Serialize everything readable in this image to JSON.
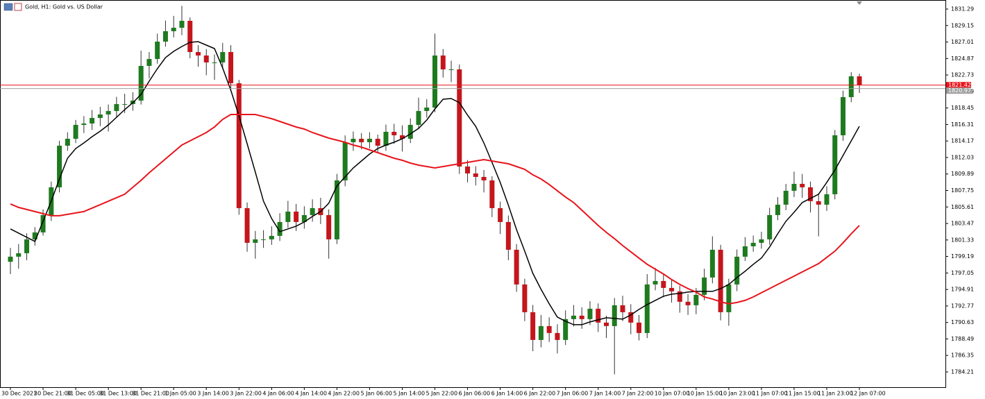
{
  "chart_data": {
    "type": "candlestick",
    "title": "Gold, H1: Gold vs. US Dollar",
    "categories": [
      "30 Dec 2021",
      null,
      null,
      null,
      "30 Dec 21:00",
      null,
      null,
      null,
      "31 Dec 05:00",
      null,
      null,
      null,
      "31 Dec 13:00",
      null,
      null,
      null,
      "31 Dec 21:00",
      null,
      null,
      null,
      "1 Jan 05:00",
      null,
      null,
      null,
      "3 Jan 14:00",
      null,
      null,
      null,
      "3 Jan 22:00",
      null,
      null,
      null,
      "4 Jan 06:00",
      null,
      null,
      null,
      "4 Jan 14:00",
      null,
      null,
      null,
      "4 Jan 22:00",
      null,
      null,
      null,
      "5 Jan 06:00",
      null,
      null,
      null,
      "5 Jan 14:00",
      null,
      null,
      null,
      "5 Jan 22:00",
      null,
      null,
      null,
      "6 Jan 06:00",
      null,
      null,
      null,
      "6 Jan 14:00",
      null,
      null,
      null,
      "6 Jan 22:00",
      null,
      null,
      null,
      "7 Jan 06:00",
      null,
      null,
      null,
      "7 Jan 14:00",
      null,
      null,
      null,
      "7 Jan 22:00",
      null,
      null,
      null,
      "10 Jan 07:00",
      null,
      null,
      null,
      "10 Jan 15:00",
      null,
      null,
      null,
      "10 Jan 23:00",
      null,
      null,
      null,
      "11 Jan 07:00",
      null,
      null,
      null,
      "11 Jan 15:00",
      null,
      null,
      null,
      "11 Jan 23:00",
      null,
      null,
      null,
      "12 Jan 07:00"
    ],
    "open": [
      1798.5,
      1799.16,
      1799.61,
      1801.41,
      1802.31,
      1804.56,
      1808.16,
      1813.56,
      1814.46,
      1816.26,
      1816.44,
      1817.16,
      1817.61,
      1818.06,
      1818.96,
      1818.96,
      1819.41,
      1823.91,
      1824.81,
      1827.06,
      1828.41,
      1828.86,
      1829.76,
      1825.71,
      1825.26,
      1824.36,
      1824.36,
      1825.71,
      1821.66,
      1805.46,
      1800.96,
      1801.41,
      1801.41,
      1801.86,
      1803.66,
      1805.01,
      1803.66,
      1804.56,
      1805.46,
      1804.56,
      1801.41,
      1809.06,
      1814.01,
      1814.46,
      1814.01,
      1814.46,
      1813.56,
      1815.36,
      1814.91,
      1814.46,
      1816.26,
      1818.06,
      1818.51,
      1825.26,
      1823.46,
      1823.46,
      1810.86,
      1809.96,
      1809.51,
      1809.06,
      1805.46,
      1803.66,
      1800.06,
      1795.56,
      1791.96,
      1788.36,
      1790.16,
      1789.26,
      1788.36,
      1791.06,
      1791.51,
      1791.06,
      1792.41,
      1790.61,
      1790.16,
      1792.86,
      1791.96,
      1790.61,
      1789.26,
      1795.56,
      1796.01,
      1795.11,
      1794.66,
      1793.31,
      1792.86,
      1794.21,
      1796.46,
      1800.06,
      1791.96,
      1795.56,
      1799.16,
      1800.51,
      1800.96,
      1801.41,
      1804.56,
      1805.91,
      1807.71,
      1808.61,
      1808.16,
      1806.36,
      1805.91,
      1807.26,
      1814.91,
      1819.86,
      1822.56
    ],
    "high": [
      1800.3,
      1800.8,
      1802.2,
      1803.0,
      1805.3,
      1808.9,
      1814.2,
      1815.3,
      1816.9,
      1817.4,
      1818.2,
      1818.6,
      1818.9,
      1819.9,
      1820.3,
      1820.5,
      1825.9,
      1825.7,
      1828.1,
      1829.8,
      1830.4,
      1831.7,
      1830.2,
      1826.6,
      1826.1,
      1825.4,
      1826.9,
      1826.6,
      1822.1,
      1806.2,
      1802.5,
      1802.6,
      1803.1,
      1804.8,
      1806.4,
      1806.0,
      1805.7,
      1806.6,
      1806.8,
      1805.3,
      1809.9,
      1814.9,
      1815.4,
      1815.2,
      1815.3,
      1815.0,
      1816.3,
      1816.4,
      1816.2,
      1817.1,
      1819.8,
      1819.6,
      1828.1,
      1826.1,
      1824.6,
      1824.1,
      1811.7,
      1810.9,
      1810.4,
      1809.6,
      1806.3,
      1804.5,
      1800.8,
      1796.3,
      1792.9,
      1791.6,
      1791.3,
      1790.4,
      1792.2,
      1792.9,
      1792.6,
      1793.4,
      1793.1,
      1791.5,
      1793.8,
      1794.1,
      1793.0,
      1791.6,
      1796.9,
      1797.7,
      1796.9,
      1796.2,
      1795.4,
      1794.3,
      1795.1,
      1797.6,
      1801.8,
      1800.7,
      1796.3,
      1800.1,
      1801.7,
      1801.9,
      1802.4,
      1805.5,
      1806.9,
      1808.6,
      1810.2,
      1809.9,
      1808.9,
      1807.4,
      1808.3,
      1815.6,
      1820.7,
      1823.1,
      1822.9
    ],
    "low": [
      1796.9,
      1797.6,
      1798.7,
      1800.6,
      1801.9,
      1803.8,
      1807.5,
      1812.9,
      1813.9,
      1815.2,
      1815.6,
      1816.1,
      1815.4,
      1817.2,
      1817.8,
      1818.1,
      1818.9,
      1822.3,
      1824.2,
      1826.4,
      1827.6,
      1827.9,
      1824.9,
      1823.8,
      1822.7,
      1822.1,
      1823.5,
      1820.8,
      1804.6,
      1799.8,
      1798.9,
      1800.3,
      1800.7,
      1801.2,
      1802.9,
      1802.5,
      1802.8,
      1803.7,
      1803.4,
      1798.9,
      1800.8,
      1808.3,
      1812.9,
      1813.1,
      1813.2,
      1812.7,
      1812.9,
      1813.8,
      1812.8,
      1813.9,
      1815.7,
      1817.2,
      1817.9,
      1822.4,
      1821.8,
      1809.9,
      1808.8,
      1808.4,
      1807.5,
      1804.3,
      1802.1,
      1798.7,
      1794.6,
      1790.8,
      1786.9,
      1787.4,
      1788.1,
      1786.6,
      1787.7,
      1790.1,
      1789.8,
      1790.3,
      1789.4,
      1788.6,
      1783.9,
      1790.8,
      1789.1,
      1788.3,
      1788.6,
      1794.8,
      1793.9,
      1793.2,
      1791.9,
      1791.6,
      1791.7,
      1793.5,
      1795.7,
      1790.9,
      1790.2,
      1794.7,
      1798.6,
      1799.8,
      1800.2,
      1800.7,
      1803.9,
      1805.2,
      1806.9,
      1806.8,
      1804.9,
      1801.8,
      1805.1,
      1806.6,
      1814.2,
      1819.2,
      1820.4
    ],
    "close": [
      1799.16,
      1799.61,
      1801.41,
      1802.31,
      1804.56,
      1808.16,
      1813.56,
      1814.46,
      1816.26,
      1816.44,
      1817.16,
      1817.61,
      1818.06,
      1818.96,
      1818.96,
      1819.41,
      1823.91,
      1824.81,
      1827.06,
      1828.41,
      1828.86,
      1829.76,
      1825.71,
      1825.26,
      1824.36,
      1824.36,
      1825.71,
      1821.66,
      1805.46,
      1800.96,
      1801.41,
      1801.41,
      1801.86,
      1803.66,
      1805.01,
      1803.66,
      1804.56,
      1805.46,
      1804.56,
      1801.41,
      1809.06,
      1814.01,
      1814.46,
      1814.01,
      1814.46,
      1813.56,
      1815.36,
      1814.91,
      1814.46,
      1816.26,
      1818.06,
      1818.51,
      1825.26,
      1823.46,
      1823.46,
      1810.86,
      1809.96,
      1809.51,
      1809.06,
      1805.46,
      1803.66,
      1800.06,
      1795.56,
      1791.96,
      1788.36,
      1790.16,
      1789.26,
      1788.36,
      1791.06,
      1791.51,
      1791.06,
      1792.41,
      1790.61,
      1790.16,
      1792.86,
      1791.96,
      1790.61,
      1789.26,
      1795.56,
      1796.01,
      1795.11,
      1794.66,
      1793.31,
      1792.86,
      1794.21,
      1796.46,
      1800.06,
      1791.96,
      1795.56,
      1799.16,
      1800.51,
      1800.96,
      1801.41,
      1804.56,
      1805.91,
      1807.71,
      1808.61,
      1808.16,
      1806.36,
      1805.91,
      1807.26,
      1814.91,
      1819.86,
      1822.56,
      1821.42
    ],
    "up_color": "#1f7a1f",
    "down_color": "#c4161c",
    "wick_color": "#333333",
    "lines": [
      {
        "color": "#000000",
        "values": [
          1802.76,
          1802.22,
          1801.68,
          1801.14,
          1803.75,
          1806.36,
          1809.24,
          1811.94,
          1813.2,
          1813.92,
          1814.73,
          1815.45,
          1816.26,
          1817.25,
          1818.24,
          1819.14,
          1820.22,
          1821.93,
          1823.55,
          1824.99,
          1825.8,
          1826.43,
          1826.97,
          1827.06,
          1826.61,
          1826.16,
          1823.64,
          1820.76,
          1817.43,
          1813.83,
          1810.14,
          1806.36,
          1804.11,
          1802.4,
          1802.76,
          1803.12,
          1803.66,
          1804.38,
          1805.01,
          1806.09,
          1808.34,
          1809.51,
          1810.68,
          1811.58,
          1812.48,
          1813.2,
          1813.65,
          1814.01,
          1814.46,
          1815.09,
          1815.81,
          1816.89,
          1818.33,
          1819.59,
          1819.68,
          1819.14,
          1817.52,
          1816.08,
          1813.92,
          1811.4,
          1808.79,
          1805.82,
          1802.67,
          1799.88,
          1797.0,
          1794.93,
          1793.04,
          1791.33,
          1790.79,
          1790.34,
          1790.34,
          1790.7,
          1790.97,
          1791.24,
          1791.15,
          1791.06,
          1791.6,
          1792.32,
          1792.95,
          1793.49,
          1794.03,
          1794.3,
          1794.39,
          1794.57,
          1794.66,
          1794.66,
          1794.66,
          1795.02,
          1795.56,
          1796.46,
          1797.27,
          1798.17,
          1798.98,
          1800.42,
          1802.13,
          1803.75,
          1804.92,
          1806.18,
          1806.72,
          1807.26,
          1808.79,
          1810.41,
          1812.3,
          1814.19,
          1816.08
        ]
      },
      {
        "color": "#e8141b",
        "values": [
          1806.0,
          1805.55,
          1805.28,
          1805.01,
          1804.74,
          1804.47,
          1804.47,
          1804.65,
          1804.83,
          1805.01,
          1805.46,
          1805.91,
          1806.36,
          1806.81,
          1807.26,
          1808.16,
          1809.06,
          1810.05,
          1810.95,
          1811.85,
          1812.75,
          1813.65,
          1814.19,
          1814.73,
          1815.27,
          1815.99,
          1816.98,
          1817.61,
          1817.61,
          1817.61,
          1817.61,
          1817.34,
          1817.07,
          1816.71,
          1816.35,
          1815.99,
          1815.72,
          1815.27,
          1814.91,
          1814.55,
          1814.28,
          1814.01,
          1813.65,
          1813.38,
          1813.02,
          1812.66,
          1812.3,
          1811.94,
          1811.67,
          1811.31,
          1811.04,
          1810.86,
          1810.68,
          1810.86,
          1811.04,
          1811.22,
          1811.4,
          1811.58,
          1811.76,
          1811.58,
          1811.4,
          1811.22,
          1810.86,
          1810.5,
          1809.78,
          1809.24,
          1808.52,
          1807.71,
          1806.9,
          1806.18,
          1805.19,
          1804.2,
          1803.21,
          1802.31,
          1801.5,
          1800.6,
          1799.79,
          1798.98,
          1798.17,
          1797.54,
          1796.91,
          1796.19,
          1795.56,
          1795.02,
          1794.57,
          1793.94,
          1793.67,
          1793.31,
          1793.04,
          1793.22,
          1793.49,
          1793.94,
          1794.48,
          1795.02,
          1795.56,
          1796.1,
          1796.64,
          1797.18,
          1797.72,
          1798.26,
          1799.07,
          1799.88,
          1800.96,
          1802.13,
          1803.21
        ]
      }
    ],
    "price_lines": [
      {
        "value": 1821.42,
        "color": "#e8141b"
      },
      {
        "value": 1820.97,
        "color": "#a0a0a0"
      }
    ],
    "ylim": [
      1782.23,
      1832.46
    ],
    "yticks": [
      1784.21,
      1786.35,
      1788.49,
      1790.63,
      1792.77,
      1794.91,
      1797.05,
      1799.19,
      1801.33,
      1803.47,
      1805.61,
      1807.75,
      1809.89,
      1812.03,
      1814.17,
      1816.31,
      1818.45,
      1820.59,
      1822.73,
      1824.87,
      1827.01,
      1829.15,
      1831.29
    ],
    "grid": false
  }
}
